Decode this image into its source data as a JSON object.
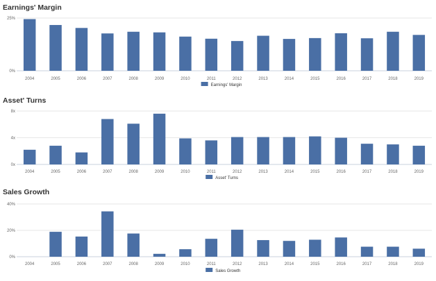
{
  "colors": {
    "bar": "#4a6fa5",
    "grid": "#e6e6e6",
    "axis": "#c8d0dc"
  },
  "chart_data": [
    {
      "type": "bar",
      "title": "Earnings' Margin",
      "legend": "Earnings' Margin",
      "legend_position": "bottom",
      "grid": true,
      "categories": [
        "2004",
        "2005",
        "2006",
        "2007",
        "2008",
        "2009",
        "2010",
        "2011",
        "2012",
        "2013",
        "2014",
        "2015",
        "2016",
        "2017",
        "2018",
        "2019"
      ],
      "series": [
        {
          "name": "Earnings' Margin",
          "values": [
            24.5,
            21.7,
            20.3,
            17.7,
            18.5,
            18.2,
            16.2,
            15.2,
            14.1,
            16.6,
            15.1,
            15.5,
            17.8,
            15.4,
            18.5,
            17.0
          ]
        }
      ],
      "ylim": [
        0,
        25
      ],
      "yticks": [
        0,
        25
      ],
      "ytick_labels": [
        "0%",
        "25%"
      ]
    },
    {
      "type": "bar",
      "title": "Asset' Turns",
      "legend": "Asset' Turns",
      "legend_position": "bottom",
      "grid": true,
      "categories": [
        "2004",
        "2005",
        "2006",
        "2007",
        "2008",
        "2009",
        "2010",
        "2011",
        "2012",
        "2013",
        "2014",
        "2015",
        "2016",
        "2017",
        "2018",
        "2019"
      ],
      "series": [
        {
          "name": "Asset' Turns",
          "values": [
            2.2,
            2.8,
            1.8,
            6.8,
            6.1,
            7.6,
            3.9,
            3.6,
            4.1,
            4.1,
            4.1,
            4.2,
            4.0,
            3.1,
            3.0,
            2.8
          ]
        }
      ],
      "ylim": [
        0,
        8
      ],
      "yticks": [
        0,
        4,
        8
      ],
      "ytick_labels": [
        "0x",
        "4x",
        "8x"
      ]
    },
    {
      "type": "bar",
      "title": "Sales Growth",
      "legend": "Sales Growth",
      "legend_position": "bottom",
      "grid": true,
      "categories": [
        "2004",
        "2005",
        "2006",
        "2007",
        "2008",
        "2009",
        "2010",
        "2011",
        "2012",
        "2013",
        "2014",
        "2015",
        "2016",
        "2017",
        "2018",
        "2019"
      ],
      "series": [
        {
          "name": "Sales Growth",
          "values": [
            0,
            18.9,
            15.3,
            34.4,
            17.6,
            2.2,
            5.7,
            13.6,
            20.5,
            12.6,
            12.0,
            12.9,
            14.6,
            7.6,
            7.6,
            6.1
          ]
        }
      ],
      "ylim": [
        0,
        40
      ],
      "yticks": [
        0,
        20,
        40
      ],
      "ytick_labels": [
        "0%",
        "20%",
        "40%"
      ]
    }
  ]
}
